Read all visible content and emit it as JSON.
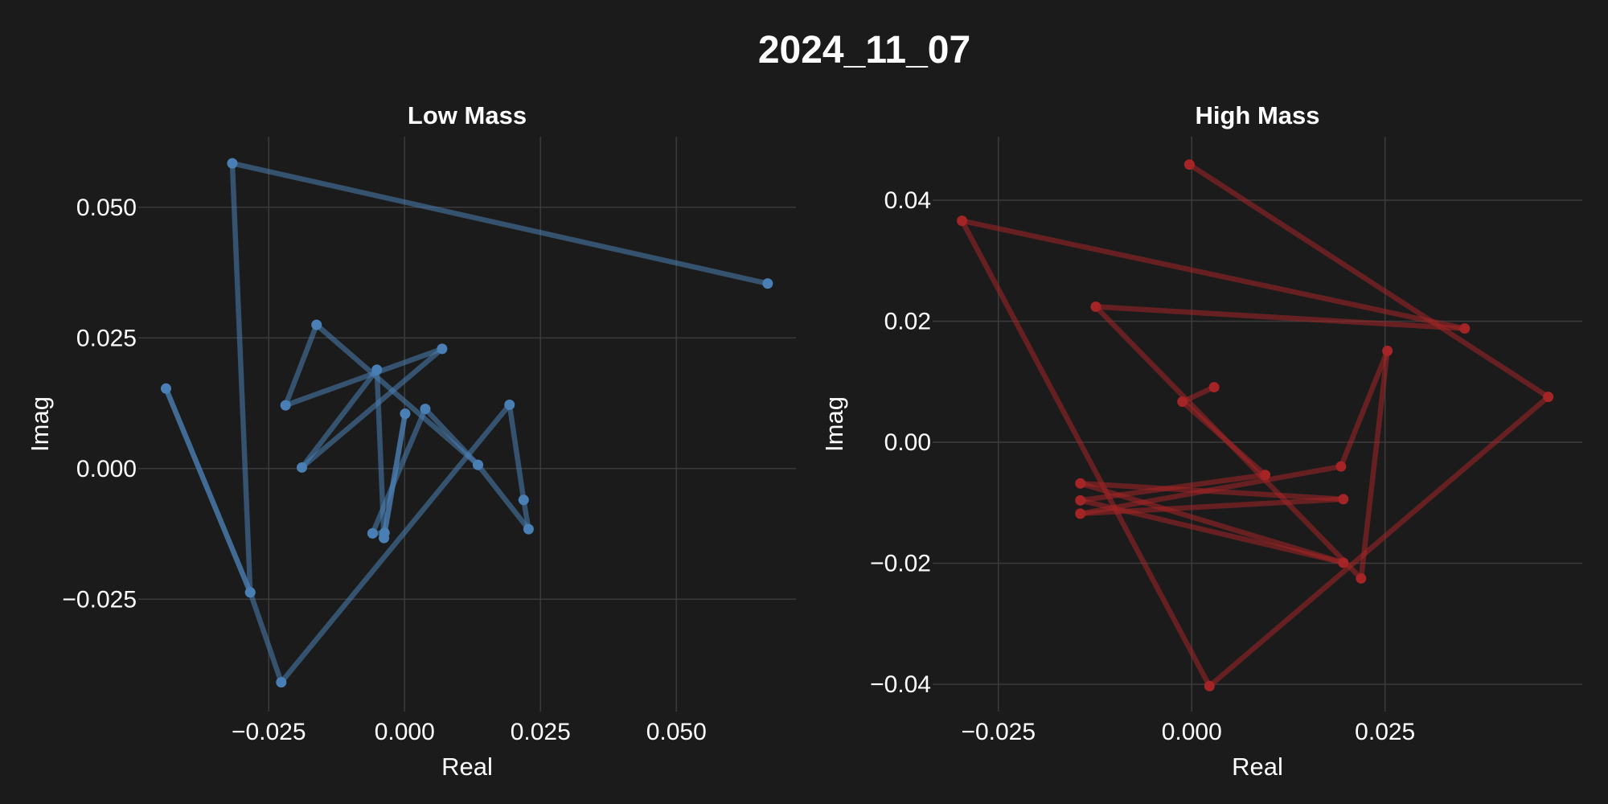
{
  "title": "2024_11_07",
  "chart_data": [
    {
      "type": "line",
      "title": "Low Mass",
      "xlabel": "Real",
      "ylabel": "Imag",
      "color": "#4a7fb5",
      "xlim": [
        -0.049,
        0.072
      ],
      "ylim": [
        -0.0465,
        0.0635
      ],
      "xticks": [
        -0.025,
        0.0,
        0.025,
        0.05
      ],
      "xtick_labels": [
        "−0.025",
        "0.000",
        "0.025",
        "0.050"
      ],
      "yticks": [
        -0.025,
        0.0,
        0.025,
        0.05
      ],
      "ytick_labels": [
        "−0.025",
        "0.000",
        "0.025",
        "0.050"
      ],
      "grid": true,
      "x": [
        0.0668,
        -0.0317,
        -0.0284,
        -0.0439,
        -0.0284,
        -0.0227,
        0.0193,
        0.0219,
        0.0228,
        0.0135,
        -0.0162,
        -0.0219,
        0.0069,
        -0.0189,
        -0.0051,
        -0.0038,
        0.0001,
        -0.0037,
        -0.0059,
        0.0038,
        0.0135
      ],
      "y": [
        0.0354,
        0.0584,
        -0.0237,
        0.0153,
        -0.0237,
        -0.0409,
        0.0122,
        -0.006,
        -0.0116,
        0.0007,
        0.0275,
        0.0121,
        0.0229,
        0.0002,
        0.0189,
        -0.0133,
        0.0105,
        -0.0123,
        -0.0124,
        0.0114,
        0.0007
      ]
    },
    {
      "type": "line",
      "title": "High Mass",
      "xlabel": "Real",
      "ylabel": "Imag",
      "color": "#a52426",
      "xlim": [
        -0.0335,
        0.0505
      ],
      "ylim": [
        -0.0445,
        0.0505
      ],
      "xticks": [
        -0.025,
        0.0,
        0.025
      ],
      "xtick_labels": [
        "−0.025",
        "0.000",
        "0.025"
      ],
      "yticks": [
        -0.04,
        -0.02,
        0.0,
        0.02,
        0.04
      ],
      "ytick_labels": [
        "−0.04",
        "−0.02",
        "0.00",
        "0.02",
        "0.04"
      ],
      "grid": true,
      "x": [
        -0.0003,
        0.0461,
        0.0023,
        -0.0297,
        0.0353,
        -0.0124,
        0.0219,
        0.0253,
        0.0193,
        -0.0144,
        0.0196,
        -0.0144,
        0.0196,
        -0.0144,
        0.0095,
        -0.0012,
        0.0029
      ],
      "y": [
        0.0459,
        0.0075,
        -0.0403,
        0.0366,
        0.0188,
        0.0224,
        -0.0225,
        0.0151,
        -0.004,
        -0.0118,
        -0.0094,
        -0.0068,
        -0.0199,
        -0.0096,
        -0.0054,
        0.0067,
        0.0091
      ]
    }
  ]
}
